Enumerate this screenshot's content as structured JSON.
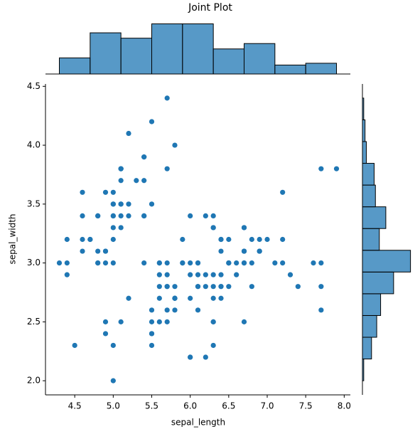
{
  "chart_data": [
    {
      "type": "scatter",
      "title": "Joint Plot",
      "x_label": "sepal_length",
      "y_label": "sepal_width",
      "color": "#1f77b4",
      "xlim": [
        4.12,
        8.08
      ],
      "ylim": [
        1.88,
        4.52
      ],
      "xticks": [
        4.5,
        {
          "value": 5,
          "label": "5.0"
        },
        5.5,
        {
          "value": 6,
          "label": "6.0"
        },
        6.5,
        {
          "value": 7,
          "label": "7.0"
        },
        7.5,
        {
          "value": 8,
          "label": "8.0"
        }
      ],
      "yticks": [
        {
          "value": 2,
          "label": "2.0"
        },
        2.5,
        {
          "value": 3,
          "label": "3.0"
        },
        3.5,
        {
          "value": 4,
          "label": "4.0"
        },
        4.5
      ],
      "x": [
        5.1,
        4.9,
        4.7,
        4.6,
        5.0,
        5.4,
        4.6,
        5.0,
        4.4,
        4.9,
        5.4,
        4.8,
        4.8,
        4.3,
        5.8,
        5.7,
        5.4,
        5.1,
        5.7,
        5.1,
        5.4,
        5.1,
        4.6,
        5.1,
        4.8,
        5.0,
        5.0,
        5.2,
        5.2,
        4.7,
        4.8,
        5.4,
        5.2,
        5.5,
        4.9,
        5.0,
        5.5,
        4.9,
        4.4,
        5.1,
        5.0,
        4.5,
        4.4,
        5.0,
        5.1,
        4.8,
        5.1,
        4.6,
        5.3,
        5.0,
        7.0,
        6.4,
        6.9,
        5.5,
        6.5,
        5.7,
        6.3,
        4.9,
        6.6,
        5.2,
        5.0,
        5.9,
        6.0,
        6.1,
        5.6,
        6.7,
        5.6,
        5.8,
        6.2,
        5.6,
        5.9,
        6.1,
        6.3,
        6.1,
        6.4,
        6.6,
        6.8,
        6.7,
        6.0,
        5.7,
        5.5,
        5.5,
        5.8,
        6.0,
        5.4,
        6.0,
        6.7,
        6.3,
        5.6,
        5.5,
        5.5,
        6.1,
        5.8,
        5.0,
        5.6,
        5.7,
        5.7,
        6.2,
        5.1,
        5.7,
        6.3,
        5.8,
        7.1,
        6.3,
        6.5,
        7.6,
        4.9,
        7.3,
        6.7,
        7.2,
        6.5,
        6.4,
        6.8,
        5.7,
        5.8,
        6.4,
        6.5,
        7.7,
        7.7,
        6.0,
        6.9,
        5.6,
        7.7,
        6.3,
        6.7,
        7.2,
        6.2,
        6.1,
        6.4,
        7.2,
        7.4,
        7.9,
        6.4,
        6.3,
        6.1,
        7.7,
        6.3,
        6.4,
        6.0,
        6.9,
        6.7,
        6.9,
        5.8,
        6.8,
        6.7,
        6.7,
        6.3,
        6.5,
        6.2,
        5.9
      ],
      "values": [
        3.5,
        3.0,
        3.2,
        3.1,
        3.6,
        3.9,
        3.4,
        3.4,
        2.9,
        3.1,
        3.7,
        3.4,
        3.0,
        3.0,
        4.0,
        4.4,
        3.9,
        3.5,
        3.8,
        3.8,
        3.4,
        3.7,
        3.6,
        3.3,
        3.4,
        3.0,
        3.4,
        3.5,
        3.4,
        3.2,
        3.1,
        3.4,
        4.1,
        4.2,
        3.1,
        3.2,
        3.5,
        3.6,
        3.0,
        3.4,
        3.5,
        2.3,
        3.2,
        3.5,
        3.8,
        3.0,
        3.8,
        3.2,
        3.7,
        3.3,
        3.2,
        3.2,
        3.1,
        2.3,
        2.8,
        2.8,
        3.3,
        2.4,
        2.9,
        2.7,
        2.0,
        3.0,
        2.2,
        2.9,
        2.9,
        3.1,
        3.0,
        2.7,
        2.2,
        2.5,
        3.2,
        2.8,
        2.5,
        2.8,
        2.9,
        3.0,
        2.8,
        3.0,
        2.9,
        2.6,
        2.4,
        2.4,
        2.7,
        2.7,
        3.0,
        3.4,
        3.1,
        2.3,
        3.0,
        2.5,
        2.6,
        3.0,
        2.6,
        2.3,
        2.7,
        3.0,
        2.9,
        2.9,
        2.5,
        2.8,
        3.3,
        2.7,
        3.0,
        2.9,
        3.0,
        3.0,
        2.5,
        2.9,
        2.5,
        3.6,
        3.2,
        2.7,
        3.0,
        2.5,
        2.8,
        3.2,
        3.0,
        3.8,
        2.6,
        2.2,
        3.2,
        2.8,
        2.8,
        2.7,
        3.3,
        3.2,
        2.8,
        3.0,
        2.8,
        3.0,
        2.8,
        3.8,
        2.8,
        2.8,
        2.6,
        3.0,
        3.4,
        3.1,
        3.0,
        3.1,
        3.1,
        3.1,
        2.7,
        3.2,
        3.3,
        3.0,
        2.5,
        3.0,
        3.4,
        3.0
      ]
    },
    {
      "type": "histogram",
      "orientation": "vertical",
      "color": "#1f77b4",
      "alpha": 0.75,
      "xlim": [
        4.12,
        8.08
      ],
      "ylim": [
        0,
        29.4
      ],
      "bins": [
        4.3,
        4.7,
        5.1,
        5.5,
        5.9,
        6.3,
        6.7,
        7.1,
        7.5,
        7.9
      ],
      "values": [
        9,
        23,
        20,
        28,
        28,
        14,
        17,
        5,
        6
      ]
    },
    {
      "type": "histogram",
      "orientation": "horizontal",
      "color": "#1f77b4",
      "alpha": 0.75,
      "xlim": [
        0,
        38.85
      ],
      "ylim": [
        1.88,
        4.52
      ],
      "bins": [
        2.0,
        2.1846,
        2.3692,
        2.5538,
        2.7385,
        2.9231,
        3.1077,
        3.2923,
        3.4769,
        3.6615,
        3.8462,
        4.0308,
        4.2154,
        4.4
      ],
      "values": [
        1,
        7,
        11,
        14,
        24,
        37,
        13,
        18,
        10,
        9,
        3,
        2,
        1
      ]
    }
  ]
}
